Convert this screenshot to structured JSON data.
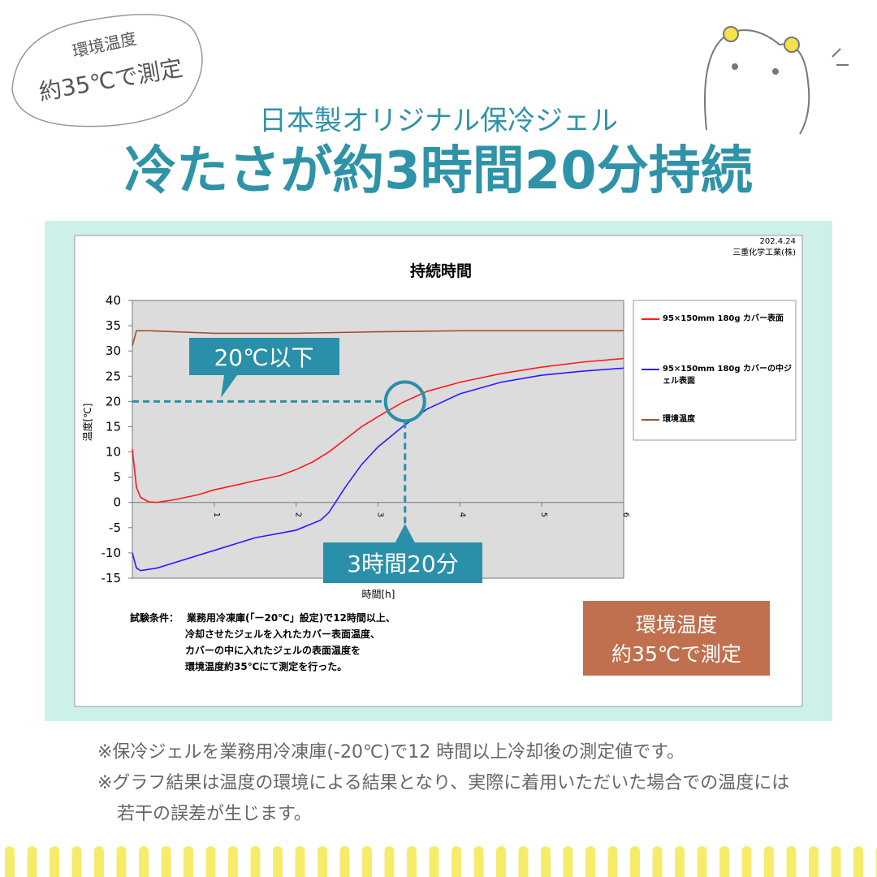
{
  "badge": {
    "line1": "環境温度",
    "line2": "約35℃で測定"
  },
  "header": {
    "subtitle": "日本製オリジナル保冷ジェル",
    "title": "冷たさが約3時間20分持続"
  },
  "chart_data": {
    "type": "line",
    "title": "持続時間",
    "date": "202.4.24",
    "source": "三重化学工業(株)",
    "xlabel": "時間[h]",
    "ylabel": "温度[℃]",
    "xlim": [
      0,
      6
    ],
    "xticks": [
      1,
      2,
      3,
      4,
      5,
      6
    ],
    "ylim": [
      -15,
      40
    ],
    "yticks": [
      -15,
      -10,
      -5,
      0,
      5,
      10,
      15,
      20,
      25,
      30,
      35,
      40
    ],
    "grid": false,
    "series": [
      {
        "name": "95×150mm 180g カバー表面",
        "color": "#ff1a1a",
        "x": [
          0,
          0.05,
          0.1,
          0.2,
          0.3,
          0.5,
          0.8,
          1,
          1.2,
          1.5,
          1.8,
          2,
          2.2,
          2.4,
          2.6,
          2.8,
          3,
          3.3,
          3.6,
          4,
          4.5,
          5,
          5.5,
          6
        ],
        "values": [
          10.5,
          3,
          1,
          0.1,
          0,
          0.5,
          1.5,
          2.5,
          3.2,
          4.3,
          5.3,
          6.5,
          8,
          10,
          12.5,
          15,
          17,
          19.8,
          22,
          23.8,
          25.5,
          26.8,
          27.8,
          28.5
        ]
      },
      {
        "name": "95×150mm 180g カバーの中ジェル表面",
        "color": "#2a1aff",
        "x": [
          0,
          0.05,
          0.1,
          0.3,
          0.5,
          1,
          1.5,
          2,
          2.3,
          2.4,
          2.6,
          2.8,
          3,
          3.3,
          3.6,
          4,
          4.5,
          5,
          5.5,
          6
        ],
        "values": [
          -10,
          -13,
          -13.5,
          -13,
          -12,
          -9.5,
          -7,
          -5.5,
          -3.5,
          -2,
          3,
          7.5,
          11,
          15,
          18.5,
          21.5,
          23.8,
          25.2,
          26,
          26.6
        ]
      },
      {
        "name": "環境温度",
        "color": "#a0522d",
        "x": [
          0,
          0.05,
          0.2,
          1,
          2,
          3,
          4,
          5,
          6
        ],
        "values": [
          31,
          34,
          34,
          33.5,
          33.5,
          33.8,
          34,
          34,
          34
        ]
      }
    ],
    "annotations": [
      {
        "text": "20℃以下",
        "y": 20
      },
      {
        "text": "3時間20分",
        "x": 3.33
      }
    ],
    "conditions": {
      "label": "試験条件：",
      "lines": [
        "業務用冷凍庫(「ー20℃」設定)で12時間以上、",
        "冷却させたジェルを入れたカバー表面温度、",
        "カバーの中に入れたジェルの表面温度を",
        "環境温度約35℃にて測定を行った。"
      ]
    }
  },
  "box": {
    "line1": "環境温度",
    "line2": "約35℃で測定"
  },
  "notes": [
    "※保冷ジェルを業務用冷凍庫(-20℃)で12 時間以上冷却後の測定値です。",
    "※グラフ結果は温度の環境による結果となり、実際に着用いただいた場合での温度には若干の誤差が生じます。"
  ]
}
